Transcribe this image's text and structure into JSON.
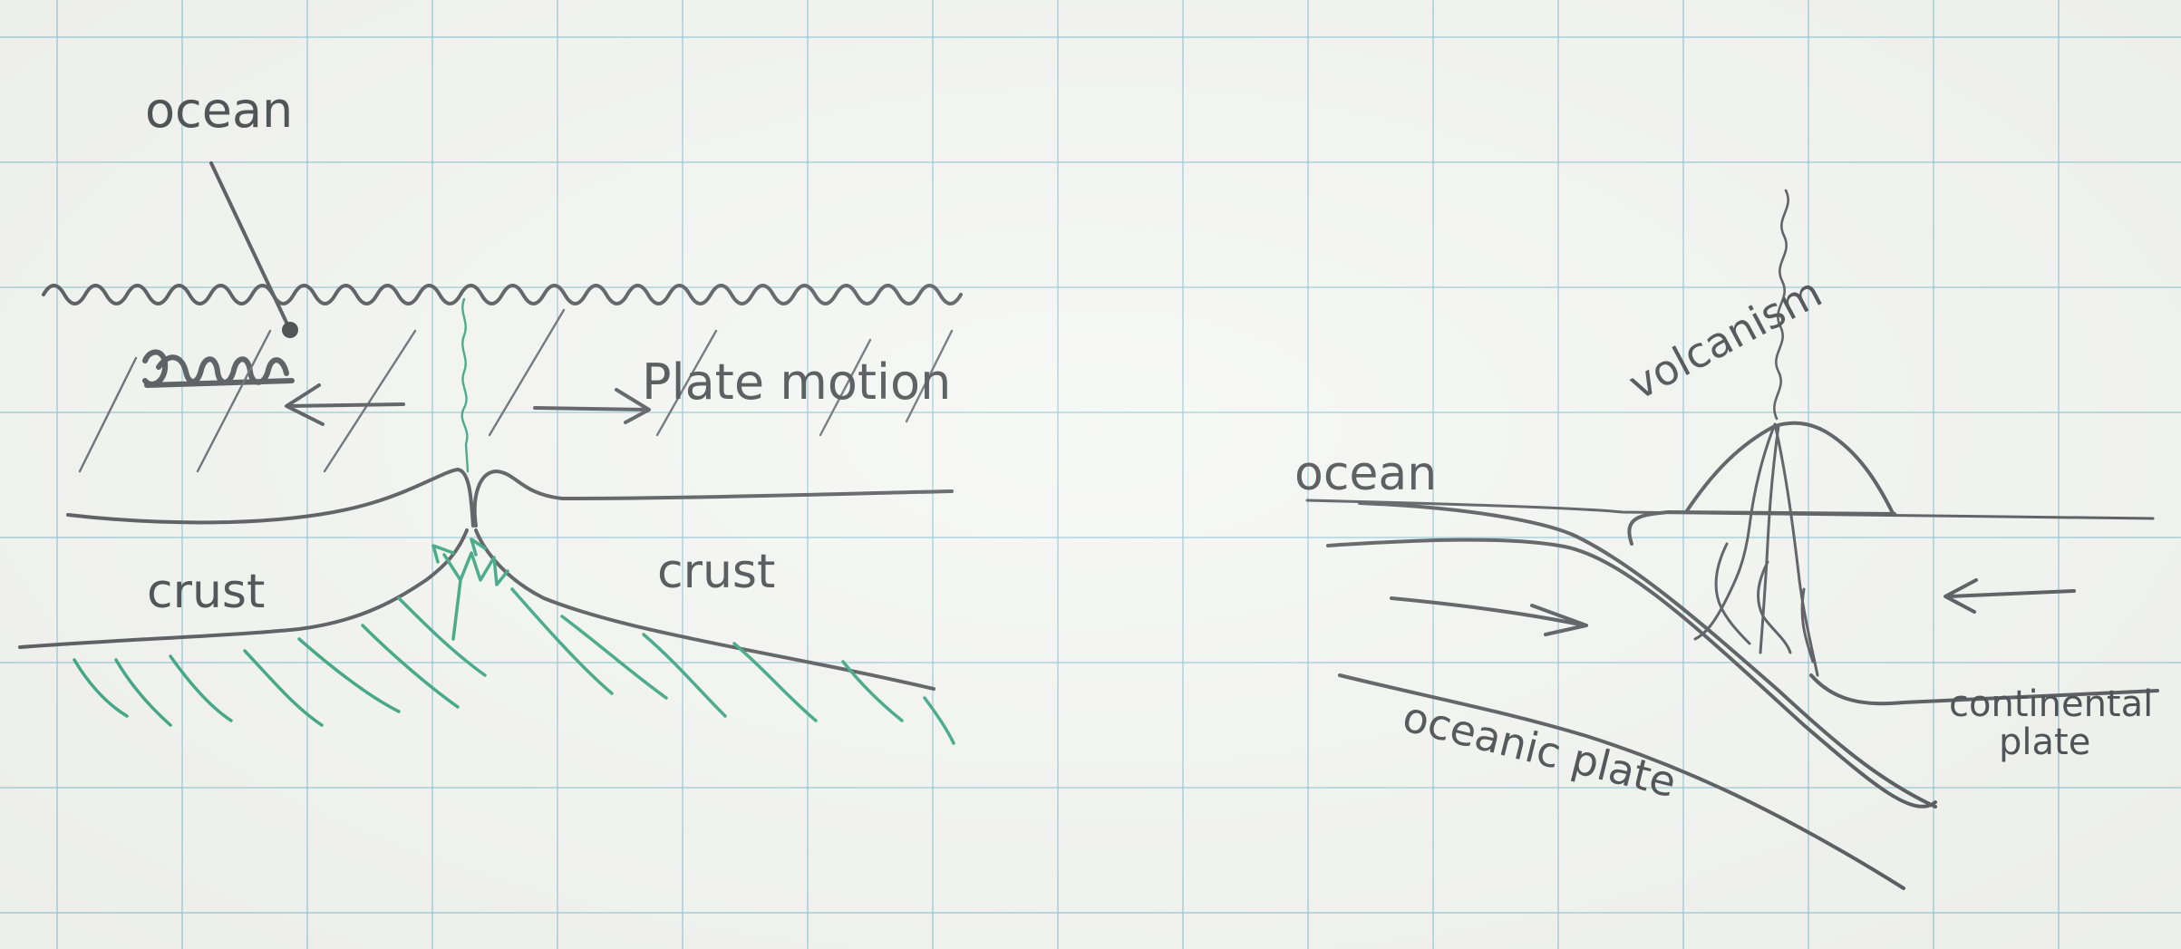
{
  "diagrams": {
    "spreading": {
      "labels": {
        "ocean": "ocean",
        "plate_motion": "Plate motion",
        "crust_left": "crust",
        "crust_right": "crust"
      }
    },
    "subduction": {
      "labels": {
        "ocean": "ocean",
        "volcanism": "volcanism",
        "continental_plate_line1": "continental",
        "continental_plate_line2": "plate",
        "oceanic_plate": "oceanic plate"
      }
    }
  },
  "colors": {
    "ink": "#3e4147",
    "magma_green": "#1f9a72",
    "grid": "#78b9cd",
    "paper": "#f4f6f2"
  }
}
